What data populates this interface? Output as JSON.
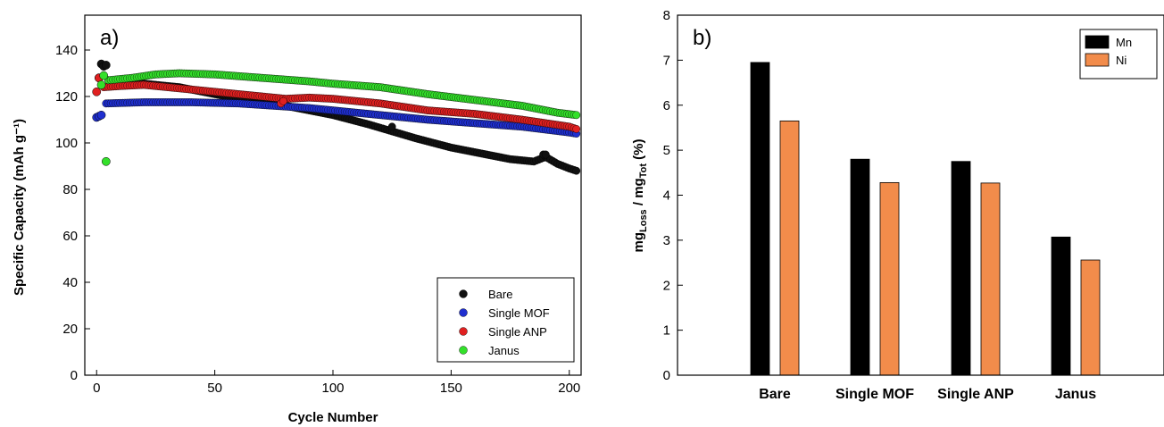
{
  "chart_data": [
    {
      "type": "scatter",
      "panel_label": "a)",
      "xlabel": "Cycle Number",
      "ylabel": "Specific Capacity (mAh g⁻¹)",
      "xlim": [
        -5,
        205
      ],
      "ylim": [
        0,
        155
      ],
      "xticks": [
        0,
        50,
        100,
        150,
        200
      ],
      "yticks": [
        0,
        20,
        40,
        60,
        80,
        100,
        120,
        140
      ],
      "legend_position": "bottom-right",
      "series": [
        {
          "name": "Bare",
          "color": "#111111",
          "outliers": [
            [
              1,
              128
            ],
            [
              2,
              134
            ],
            [
              3,
              133
            ],
            [
              4,
              133.5
            ]
          ],
          "profile": [
            [
              5,
              127
            ],
            [
              15,
              126
            ],
            [
              25,
              125
            ],
            [
              35,
              124
            ],
            [
              50,
              121
            ],
            [
              65,
              118
            ],
            [
              75,
              117
            ],
            [
              90,
              114
            ],
            [
              100,
              112
            ],
            [
              115,
              108
            ],
            [
              125,
              105
            ],
            [
              135,
              102
            ],
            [
              150,
              98
            ],
            [
              165,
              95
            ],
            [
              175,
              93
            ],
            [
              185,
              92
            ],
            [
              190,
              94
            ],
            [
              195,
              91
            ],
            [
              200,
              89
            ],
            [
              203,
              88
            ]
          ],
          "bumps": [
            [
              125,
              107
            ],
            [
              189,
              95
            ],
            [
              190,
              95
            ]
          ]
        },
        {
          "name": "Single MOF",
          "color": "#1f2fcf",
          "outliers": [
            [
              0,
              111
            ],
            [
              1,
              111.5
            ],
            [
              2,
              112
            ]
          ],
          "profile": [
            [
              4,
              117
            ],
            [
              20,
              117.5
            ],
            [
              40,
              117.5
            ],
            [
              60,
              117
            ],
            [
              75,
              116
            ],
            [
              90,
              115
            ],
            [
              100,
              114
            ],
            [
              120,
              112
            ],
            [
              140,
              110
            ],
            [
              160,
              108.5
            ],
            [
              180,
              107
            ],
            [
              200,
              104.5
            ],
            [
              203,
              104
            ]
          ],
          "bumps": []
        },
        {
          "name": "Single ANP",
          "color": "#e02020",
          "outliers": [
            [
              0,
              122
            ],
            [
              1,
              128
            ]
          ],
          "profile": [
            [
              3,
              124
            ],
            [
              10,
              124.5
            ],
            [
              20,
              125
            ],
            [
              30,
              124
            ],
            [
              50,
              122
            ],
            [
              70,
              120
            ],
            [
              80,
              119
            ],
            [
              90,
              119.5
            ],
            [
              100,
              119
            ],
            [
              120,
              117
            ],
            [
              140,
              114
            ],
            [
              160,
              112.5
            ],
            [
              180,
              110
            ],
            [
              200,
              107
            ],
            [
              203,
              106
            ]
          ],
          "bumps": [
            [
              78,
              117
            ],
            [
              79,
              118
            ]
          ]
        },
        {
          "name": "Janus",
          "color": "#33e02a",
          "outliers": [
            [
              2,
              125
            ],
            [
              3,
              129
            ],
            [
              4,
              92
            ]
          ],
          "profile": [
            [
              5,
              127
            ],
            [
              15,
              128
            ],
            [
              25,
              129.5
            ],
            [
              35,
              130
            ],
            [
              50,
              129.5
            ],
            [
              70,
              128
            ],
            [
              90,
              126.5
            ],
            [
              100,
              125.5
            ],
            [
              120,
              124
            ],
            [
              140,
              121
            ],
            [
              160,
              118.5
            ],
            [
              180,
              116
            ],
            [
              195,
              113
            ],
            [
              203,
              112
            ]
          ],
          "bumps": []
        }
      ]
    },
    {
      "type": "bar",
      "panel_label": "b)",
      "ylabel_main": "mg",
      "ylabel_sub1": "Loss",
      "ylabel_mid": " / mg",
      "ylabel_sub2": "Tot",
      "ylabel_tail": " (%)",
      "ylim": [
        0,
        8
      ],
      "yticks": [
        0,
        1,
        2,
        3,
        4,
        5,
        6,
        7,
        8
      ],
      "legend_position": "top-right",
      "categories": [
        "Bare",
        "Single MOF",
        "Single ANP",
        "Janus"
      ],
      "series": [
        {
          "name": "Mn",
          "color": "#000000",
          "values": [
            6.95,
            4.8,
            4.75,
            3.07
          ]
        },
        {
          "name": "Ni",
          "color": "#f28c4b",
          "values": [
            5.65,
            4.28,
            4.27,
            2.56
          ]
        }
      ]
    }
  ]
}
